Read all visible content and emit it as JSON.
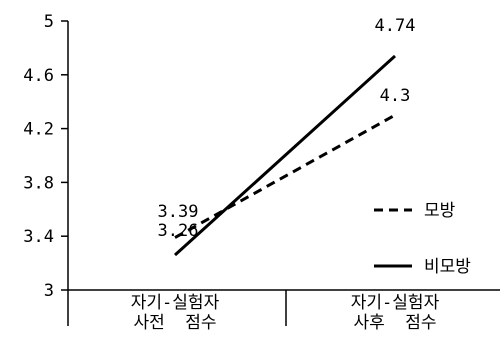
{
  "chart_data": {
    "type": "line",
    "title": "",
    "xlabel": "",
    "ylabel": "",
    "categories": [
      [
        "자기-실험자",
        "사전  점수"
      ],
      [
        "자기-실험자",
        "사후  점수"
      ]
    ],
    "ylim": [
      3,
      5
    ],
    "yticks": [
      "3",
      "3.4",
      "3.8",
      "4.2",
      "4.6",
      "5"
    ],
    "grid": false,
    "legend_position": "right",
    "series": [
      {
        "name": "모방",
        "values": [
          3.39,
          4.3
        ],
        "labels": [
          "3.39",
          "4.3"
        ],
        "line_style": "dashed",
        "color": "#000000"
      },
      {
        "name": "비모방",
        "values": [
          3.26,
          4.74
        ],
        "labels": [
          "3.26",
          "4.74"
        ],
        "line_style": "solid",
        "color": "#000000"
      }
    ]
  }
}
